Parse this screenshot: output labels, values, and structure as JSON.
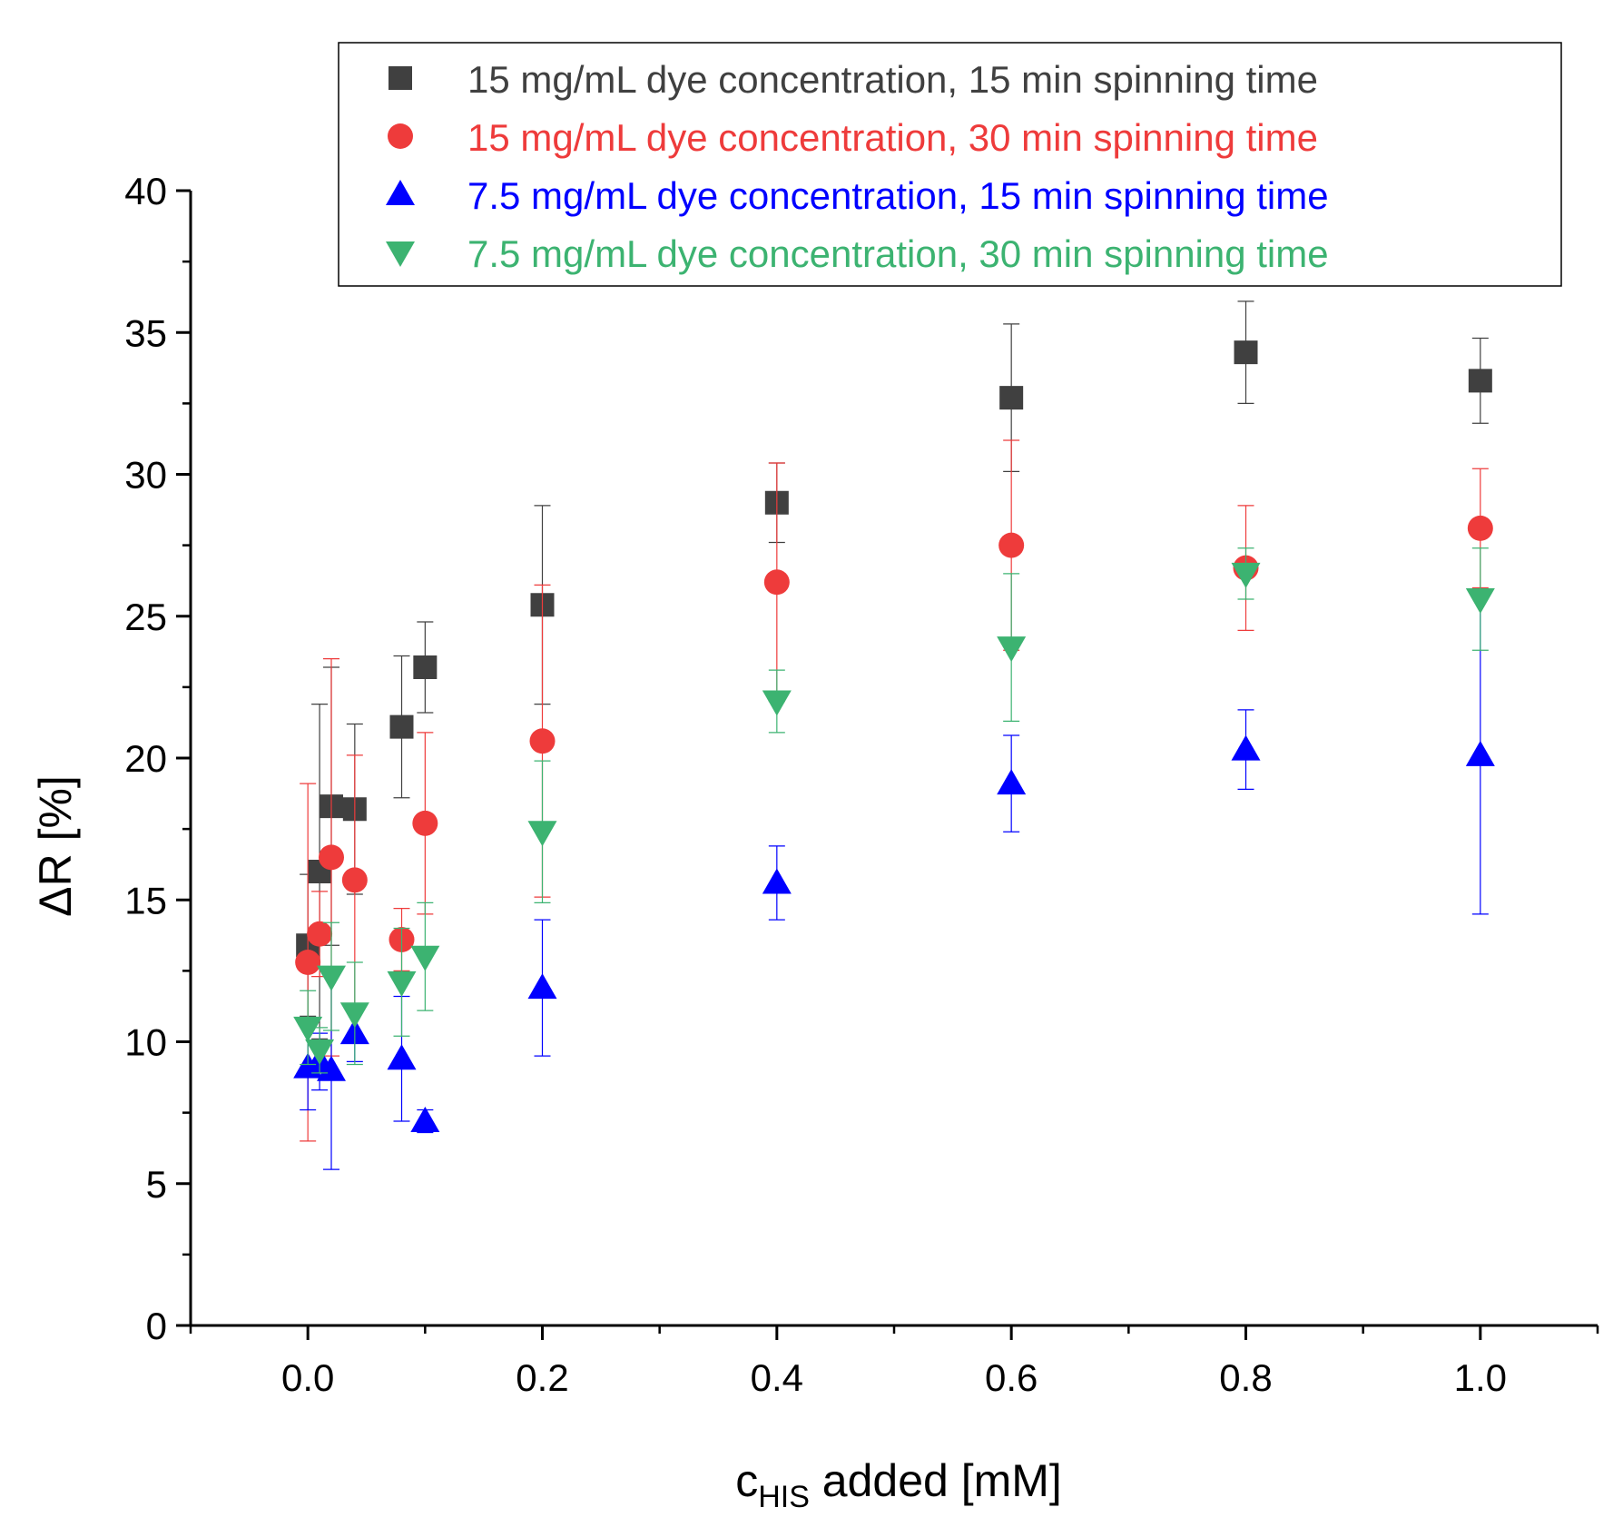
{
  "chart_data": {
    "type": "scatter",
    "title": "",
    "xlabel": {
      "main": "c",
      "sub": "HIS",
      "rest": " added [mM]"
    },
    "ylabel": "ΔR [%]",
    "xlim": [
      -0.1,
      1.1
    ],
    "ylim": [
      0,
      40
    ],
    "x_ticks": [
      0.0,
      0.2,
      0.4,
      0.6,
      0.8,
      1.0
    ],
    "x_tick_labels": [
      "0.0",
      "0.2",
      "0.4",
      "0.6",
      "0.8",
      "1.0"
    ],
    "y_ticks": [
      0,
      5,
      10,
      15,
      20,
      25,
      30,
      35,
      40
    ],
    "y_tick_labels": [
      "0",
      "5",
      "10",
      "15",
      "20",
      "25",
      "30",
      "35",
      "40"
    ],
    "grid": false,
    "legend_position": "top-right",
    "series": [
      {
        "name": "15 mg/mL dye concentration, 15 min spinning time",
        "color": "#404040",
        "marker": "square",
        "points": [
          {
            "x": 0.0,
            "y": 13.4,
            "err": 2.5
          },
          {
            "x": 0.01,
            "y": 16.0,
            "err": 5.9
          },
          {
            "x": 0.02,
            "y": 18.3,
            "err": 4.9
          },
          {
            "x": 0.04,
            "y": 18.2,
            "err": 3.0
          },
          {
            "x": 0.08,
            "y": 21.1,
            "err": 2.5
          },
          {
            "x": 0.1,
            "y": 23.2,
            "err": 1.6
          },
          {
            "x": 0.2,
            "y": 25.4,
            "err": 3.5
          },
          {
            "x": 0.4,
            "y": 29.0,
            "err": 1.4
          },
          {
            "x": 0.6,
            "y": 32.7,
            "err": 2.6
          },
          {
            "x": 0.8,
            "y": 34.3,
            "err": 1.8
          },
          {
            "x": 1.0,
            "y": 33.3,
            "err": 1.5
          }
        ]
      },
      {
        "name": "15 mg/mL dye concentration, 30 min spinning time",
        "color": "#ee3b3b",
        "marker": "circle",
        "points": [
          {
            "x": 0.0,
            "y": 12.8,
            "err": 6.3
          },
          {
            "x": 0.01,
            "y": 13.8,
            "err": 1.5
          },
          {
            "x": 0.02,
            "y": 16.5,
            "err": 7.0
          },
          {
            "x": 0.04,
            "y": 15.7,
            "err": 4.4
          },
          {
            "x": 0.08,
            "y": 13.6,
            "err": 1.1
          },
          {
            "x": 0.1,
            "y": 17.7,
            "err": 3.2
          },
          {
            "x": 0.2,
            "y": 20.6,
            "err": 5.5
          },
          {
            "x": 0.4,
            "y": 26.2,
            "err": 4.2
          },
          {
            "x": 0.6,
            "y": 27.5,
            "err": 3.7
          },
          {
            "x": 0.8,
            "y": 26.7,
            "err": 2.2
          },
          {
            "x": 1.0,
            "y": 28.1,
            "err": 2.1
          }
        ]
      },
      {
        "name": "7.5 mg/mL dye concentration, 15 min spinning time",
        "color": "#0000ff",
        "marker": "triangle-up",
        "points": [
          {
            "x": 0.0,
            "y": 9.1,
            "err": 1.5
          },
          {
            "x": 0.01,
            "y": 9.3,
            "err": 1.0
          },
          {
            "x": 0.02,
            "y": 9.0,
            "err": 3.5
          },
          {
            "x": 0.04,
            "y": 10.3,
            "err": 1.0
          },
          {
            "x": 0.08,
            "y": 9.4,
            "err": 2.2
          },
          {
            "x": 0.1,
            "y": 7.2,
            "err": 0.4
          },
          {
            "x": 0.2,
            "y": 11.9,
            "err": 2.4
          },
          {
            "x": 0.4,
            "y": 15.6,
            "err": 1.3
          },
          {
            "x": 0.6,
            "y": 19.1,
            "err": 1.7
          },
          {
            "x": 0.8,
            "y": 20.3,
            "err": 1.4
          },
          {
            "x": 1.0,
            "y": 20.1,
            "err": 5.6
          }
        ]
      },
      {
        "name": "7.5 mg/mL dye concentration, 30 min spinning time",
        "color": "#3cb371",
        "marker": "triangle-down",
        "points": [
          {
            "x": 0.0,
            "y": 10.5,
            "err": 1.3
          },
          {
            "x": 0.01,
            "y": 9.7,
            "err": 0.8
          },
          {
            "x": 0.02,
            "y": 12.3,
            "err": 1.9
          },
          {
            "x": 0.04,
            "y": 11.0,
            "err": 1.8
          },
          {
            "x": 0.08,
            "y": 12.1,
            "err": 1.9
          },
          {
            "x": 0.1,
            "y": 13.0,
            "err": 1.9
          },
          {
            "x": 0.2,
            "y": 17.4,
            "err": 2.5
          },
          {
            "x": 0.4,
            "y": 22.0,
            "err": 1.1
          },
          {
            "x": 0.6,
            "y": 23.9,
            "err": 2.6
          },
          {
            "x": 0.8,
            "y": 26.5,
            "err": 0.9
          },
          {
            "x": 1.0,
            "y": 25.6,
            "err": 1.8
          }
        ]
      }
    ]
  }
}
